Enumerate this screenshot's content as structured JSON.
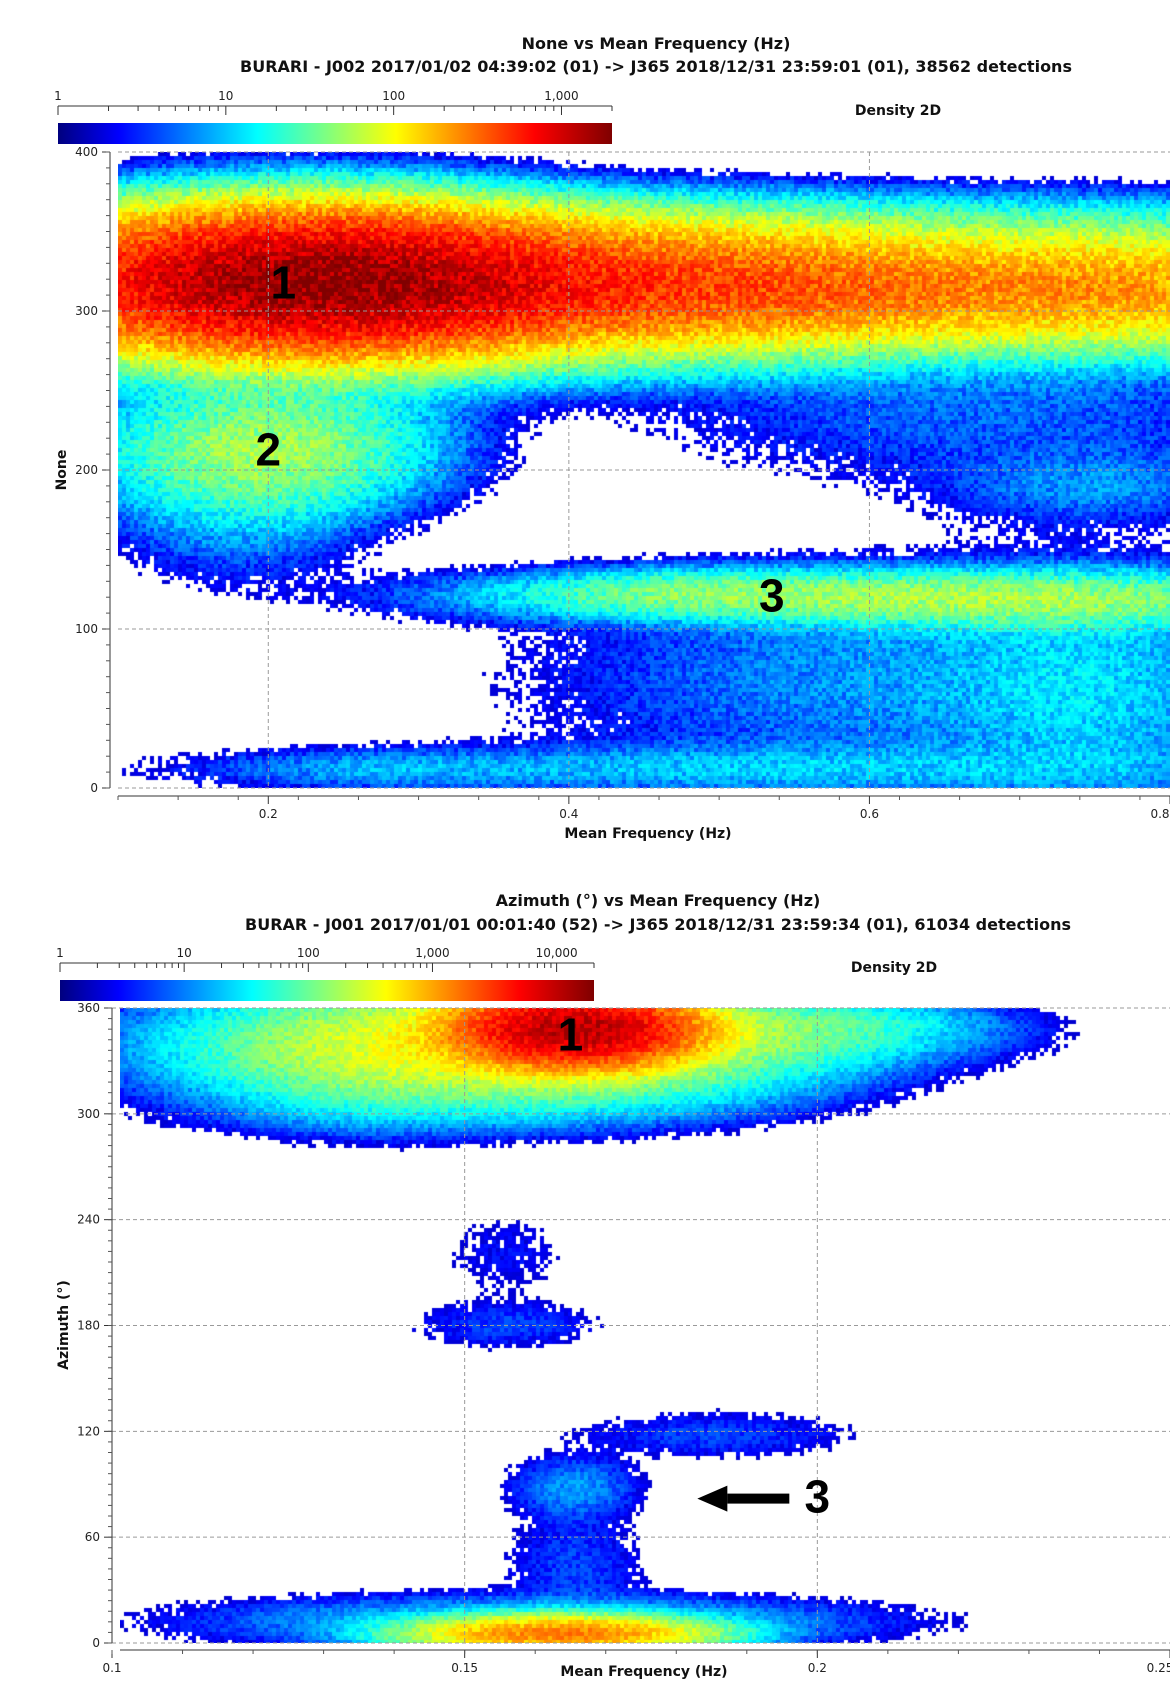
{
  "chart_data": [
    {
      "type": "heatmap",
      "title": "None vs Mean Frequency (Hz)",
      "subtitle": "BURARI - J002 2017/01/02 04:39:02 (01) -> J365 2018/12/31 23:59:01 (01), 38562 detections",
      "xlabel": "Mean Frequency (Hz)",
      "ylabel": "None",
      "legend_label": "Density 2D",
      "colorbar_ticks": [
        "1",
        "10",
        "100",
        "1,000"
      ],
      "colorbar_range": [
        1,
        2000
      ],
      "xlim": [
        0.1,
        0.8
      ],
      "ylim": [
        0,
        400
      ],
      "x_ticks": [
        0.2,
        0.4,
        0.6,
        0.8
      ],
      "x_tick_labels": [
        "0.2",
        "0.4",
        "0.6",
        "0.8"
      ],
      "y_ticks": [
        0,
        100,
        200,
        300,
        400
      ],
      "y_tick_labels": [
        "0",
        "100",
        "200",
        "300",
        "400"
      ],
      "grid": true,
      "annotations": [
        {
          "text": "1",
          "x": 0.21,
          "y": 318
        },
        {
          "text": "2",
          "x": 0.2,
          "y": 213
        },
        {
          "text": "3",
          "x": 0.535,
          "y": 121
        }
      ],
      "density_blobs": [
        {
          "x": 0.23,
          "y": 318,
          "sx": 0.09,
          "sy": 22,
          "peak": 1600
        },
        {
          "x": 0.4,
          "y": 316,
          "sx": 0.16,
          "sy": 20,
          "peak": 420
        },
        {
          "x": 0.62,
          "y": 312,
          "sx": 0.14,
          "sy": 18,
          "peak": 150
        },
        {
          "x": 0.78,
          "y": 315,
          "sx": 0.07,
          "sy": 20,
          "peak": 120
        },
        {
          "x": 0.3,
          "y": 345,
          "sx": 0.2,
          "sy": 14,
          "peak": 30
        },
        {
          "x": 0.55,
          "y": 350,
          "sx": 0.22,
          "sy": 14,
          "peak": 12
        },
        {
          "x": 0.2,
          "y": 213,
          "sx": 0.06,
          "sy": 22,
          "peak": 45
        },
        {
          "x": 0.18,
          "y": 185,
          "sx": 0.05,
          "sy": 30,
          "peak": 8
        },
        {
          "x": 0.22,
          "y": 255,
          "sx": 0.07,
          "sy": 18,
          "peak": 6
        },
        {
          "x": 0.53,
          "y": 121,
          "sx": 0.11,
          "sy": 9,
          "peak": 35
        },
        {
          "x": 0.72,
          "y": 118,
          "sx": 0.1,
          "sy": 10,
          "peak": 40
        },
        {
          "x": 0.47,
          "y": 124,
          "sx": 0.05,
          "sy": 7,
          "peak": 8
        },
        {
          "x": 0.62,
          "y": 70,
          "sx": 0.14,
          "sy": 40,
          "peak": 6
        },
        {
          "x": 0.75,
          "y": 60,
          "sx": 0.06,
          "sy": 45,
          "peak": 7
        },
        {
          "x": 0.52,
          "y": 12,
          "sx": 0.2,
          "sy": 9,
          "peak": 8
        },
        {
          "x": 0.27,
          "y": 12,
          "sx": 0.06,
          "sy": 7,
          "peak": 4
        },
        {
          "x": 0.68,
          "y": 240,
          "sx": 0.14,
          "sy": 30,
          "peak": 4
        },
        {
          "x": 0.75,
          "y": 190,
          "sx": 0.06,
          "sy": 14,
          "peak": 5
        },
        {
          "x": 0.45,
          "y": 270,
          "sx": 0.12,
          "sy": 12,
          "peak": 5
        }
      ]
    },
    {
      "type": "heatmap",
      "title": "Azimuth (°) vs Mean Frequency (Hz)",
      "subtitle": "BURAR - J001 2017/01/01 00:01:40 (52) -> J365 2018/12/31 23:59:34 (01), 61034 detections",
      "xlabel": "Mean Frequency (Hz)",
      "ylabel": "Azimuth (°)",
      "legend_label": "Density 2D",
      "colorbar_ticks": [
        "1",
        "10",
        "100",
        "1,000",
        "10,000"
      ],
      "colorbar_range": [
        1,
        20000
      ],
      "xlim": [
        0.1,
        0.25
      ],
      "ylim": [
        0,
        360
      ],
      "x_ticks": [
        0.1,
        0.15,
        0.2,
        0.25
      ],
      "x_tick_labels": [
        "0.1",
        "0.15",
        "0.2",
        "0.25"
      ],
      "y_ticks": [
        0,
        60,
        120,
        180,
        240,
        300,
        360
      ],
      "y_tick_labels": [
        "0",
        "60",
        "120",
        "180",
        "240",
        "300",
        "360"
      ],
      "grid": true,
      "annotations": [
        {
          "text": "1",
          "x": 0.165,
          "y": 345
        },
        {
          "text": "3",
          "x": 0.2,
          "y": 83,
          "arrow": true
        }
      ],
      "density_blobs": [
        {
          "x": 0.165,
          "y": 348,
          "sx": 0.008,
          "sy": 10,
          "peak": 12000
        },
        {
          "x": 0.155,
          "y": 338,
          "sx": 0.02,
          "sy": 16,
          "peak": 400
        },
        {
          "x": 0.135,
          "y": 335,
          "sx": 0.01,
          "sy": 18,
          "peak": 60
        },
        {
          "x": 0.18,
          "y": 345,
          "sx": 0.018,
          "sy": 9,
          "peak": 120
        },
        {
          "x": 0.2,
          "y": 353,
          "sx": 0.012,
          "sy": 6,
          "peak": 25
        },
        {
          "x": 0.14,
          "y": 302,
          "sx": 0.02,
          "sy": 8,
          "peak": 4
        },
        {
          "x": 0.163,
          "y": 5,
          "sx": 0.01,
          "sy": 5,
          "peak": 1500
        },
        {
          "x": 0.16,
          "y": 12,
          "sx": 0.025,
          "sy": 8,
          "peak": 20
        },
        {
          "x": 0.165,
          "y": 45,
          "sx": 0.006,
          "sy": 18,
          "peak": 4
        },
        {
          "x": 0.165,
          "y": 88,
          "sx": 0.005,
          "sy": 10,
          "peak": 10
        },
        {
          "x": 0.185,
          "y": 118,
          "sx": 0.012,
          "sy": 8,
          "peak": 4
        },
        {
          "x": 0.155,
          "y": 180,
          "sx": 0.008,
          "sy": 8,
          "peak": 4
        },
        {
          "x": 0.155,
          "y": 220,
          "sx": 0.006,
          "sy": 16,
          "peak": 2
        }
      ]
    }
  ]
}
